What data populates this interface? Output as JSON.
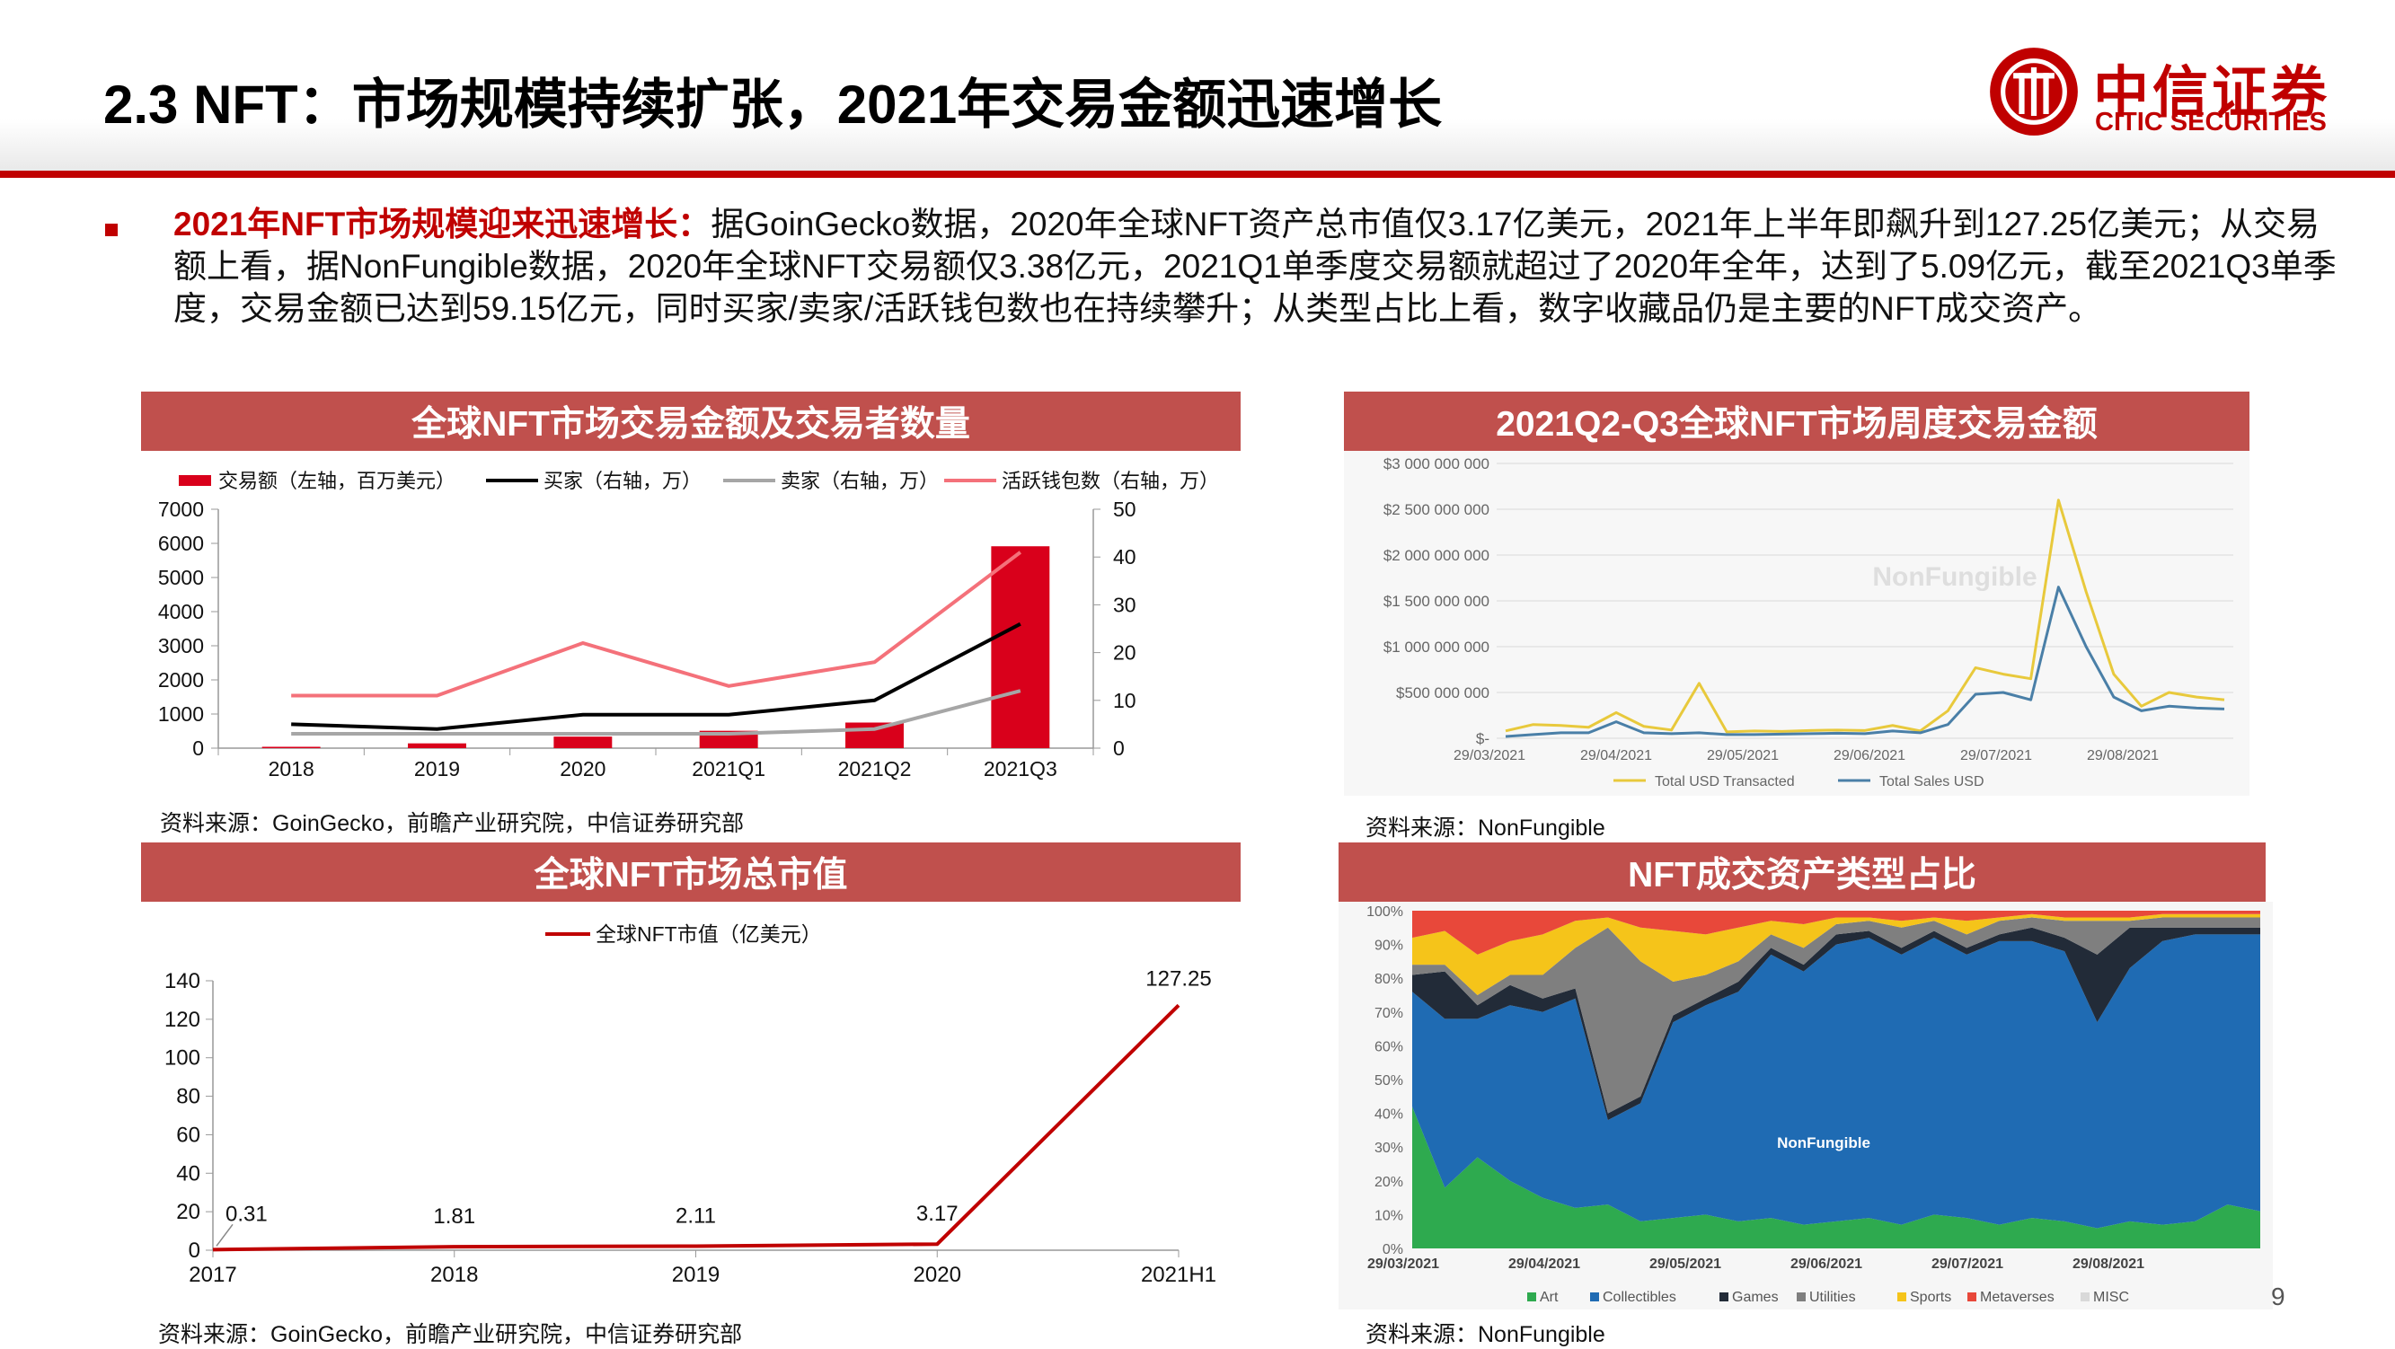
{
  "page": {
    "title": "2.3 NFT：市场规模持续扩张，2021年交易金额迅速增长",
    "logo_cn": "中信证券",
    "logo_en": "CITIC SECURITIES",
    "page_number": "9",
    "colors": {
      "brand_red": "#c00000",
      "panel_title_bg": "#c0504d"
    }
  },
  "summary": {
    "highlight": "2021年NFT市场规模迎来迅速增长：",
    "text": "据GoinGecko数据，2020年全球NFT资产总市值仅3.17亿美元，2021年上半年即飙升到127.25亿美元；从交易额上看，据NonFungible数据，2020年全球NFT交易额仅3.38亿元，2021Q1单季度交易额就超过了2020年全年，达到了5.09亿元，截至2021Q3单季度，交易金额已达到59.15亿元，同时买家/卖家/活跃钱包数也在持续攀升；从类型占比上看，数字收藏品仍是主要的NFT成交资产。"
  },
  "panels": {
    "p1": {
      "title": "全球NFT市场交易金额及交易者数量",
      "source": "资料来源：GoinGecko，前瞻产业研究院，中信证券研究部"
    },
    "p2": {
      "title": "2021Q2-Q3全球NFT市场周度交易金额",
      "source": "资料来源：NonFungible"
    },
    "p3": {
      "title": "全球NFT市场总市值",
      "source": "资料来源：GoinGecko，前瞻产业研究院，中信证券研究部"
    },
    "p4": {
      "title": "NFT成交资产类型占比",
      "source": "资料来源：NonFungible"
    }
  },
  "chart_data": [
    {
      "type": "bar",
      "categories": [
        "2018",
        "2019",
        "2020",
        "2021Q1",
        "2021Q2",
        "2021Q3"
      ],
      "ylim": [
        0,
        7000
      ],
      "yticks": [
        0,
        1000,
        2000,
        3000,
        4000,
        5000,
        6000,
        7000
      ],
      "y2lim": [
        0,
        50
      ],
      "y2ticks": [
        0,
        10,
        20,
        30,
        40,
        50
      ],
      "legend_position": "top",
      "series": [
        {
          "name": "交易额（左轴，百万美元）",
          "kind": "bar",
          "axis": "left",
          "color": "#d9001b",
          "values": [
            40,
            140,
            338,
            509,
            750,
            5915
          ]
        },
        {
          "name": "买家（右轴，万）",
          "kind": "line",
          "axis": "right",
          "color": "#000000",
          "values": [
            5,
            4,
            7,
            7,
            10,
            26
          ]
        },
        {
          "name": "卖家（右轴，万）",
          "kind": "line",
          "axis": "right",
          "color": "#a6a6a6",
          "values": [
            3,
            3,
            3,
            3,
            4,
            12
          ]
        },
        {
          "name": "活跃钱包数（右轴，万）",
          "kind": "line",
          "axis": "right",
          "color": "#f4717a",
          "values": [
            11,
            11,
            22,
            13,
            18,
            41
          ]
        }
      ]
    },
    {
      "type": "line",
      "watermark": "NonFungible",
      "ylim": [
        0,
        3000000000
      ],
      "ytick_labels": [
        "$-",
        "$500 000 000",
        "$1 000 000 000",
        "$1 500 000 000",
        "$2 000 000 000",
        "$2 500 000 000",
        "$3 000 000 000"
      ],
      "x_tick_labels": [
        "29/03/2021",
        "29/04/2021",
        "29/05/2021",
        "29/06/2021",
        "29/07/2021",
        "29/08/2021"
      ],
      "x": [
        "2021-03-29",
        "2021-04-05",
        "2021-04-12",
        "2021-04-19",
        "2021-04-26",
        "2021-05-03",
        "2021-05-10",
        "2021-05-17",
        "2021-05-24",
        "2021-05-31",
        "2021-06-07",
        "2021-06-14",
        "2021-06-21",
        "2021-06-28",
        "2021-07-05",
        "2021-07-12",
        "2021-07-19",
        "2021-07-26",
        "2021-08-02",
        "2021-08-09",
        "2021-08-16",
        "2021-08-23",
        "2021-08-30",
        "2021-09-06",
        "2021-09-13",
        "2021-09-20",
        "2021-09-27"
      ],
      "legend_position": "bottom",
      "series": [
        {
          "name": "Total USD Transacted",
          "color": "#e8c93c",
          "values": [
            80000000,
            150000000,
            140000000,
            120000000,
            280000000,
            130000000,
            90000000,
            600000000,
            70000000,
            80000000,
            75000000,
            85000000,
            90000000,
            85000000,
            140000000,
            80000000,
            300000000,
            770000000,
            700000000,
            650000000,
            2600000000,
            1600000000,
            700000000,
            350000000,
            500000000,
            450000000,
            420000000
          ]
        },
        {
          "name": "Total Sales USD",
          "color": "#4a7fa7",
          "values": [
            20000000,
            40000000,
            60000000,
            60000000,
            180000000,
            60000000,
            50000000,
            60000000,
            40000000,
            40000000,
            45000000,
            50000000,
            55000000,
            50000000,
            80000000,
            60000000,
            150000000,
            480000000,
            500000000,
            420000000,
            1650000000,
            1000000000,
            450000000,
            300000000,
            350000000,
            330000000,
            320000000
          ]
        }
      ]
    },
    {
      "type": "line",
      "categories": [
        "2017",
        "2018",
        "2019",
        "2020",
        "2021H1"
      ],
      "ylim": [
        0,
        140
      ],
      "yticks": [
        0,
        20,
        40,
        60,
        80,
        100,
        120,
        140
      ],
      "legend_position": "top",
      "series": [
        {
          "name": "全球NFT市值（亿美元）",
          "color": "#c00000",
          "values": [
            0.31,
            1.81,
            2.11,
            3.17,
            127.25
          ],
          "labels": [
            "0.31",
            "1.81",
            "2.11",
            "3.17",
            "127.25"
          ]
        }
      ]
    },
    {
      "type": "area",
      "watermark": "NonFungible",
      "ylim": [
        0,
        100
      ],
      "ytick_labels": [
        "0%",
        "10%",
        "20%",
        "30%",
        "40%",
        "50%",
        "60%",
        "70%",
        "80%",
        "90%",
        "100%"
      ],
      "x_tick_labels": [
        "29/03/2021",
        "29/04/2021",
        "29/05/2021",
        "29/06/2021",
        "29/07/2021",
        "29/08/2021"
      ],
      "legend_position": "bottom",
      "series": [
        {
          "name": "Art",
          "color": "#2eaa4f",
          "values": [
            42,
            18,
            27,
            20,
            15,
            12,
            13,
            8,
            9,
            10,
            8,
            9,
            7,
            8,
            9,
            7,
            10,
            9,
            7,
            9,
            8,
            6,
            8,
            7,
            8,
            13,
            11
          ]
        },
        {
          "name": "Collectibles",
          "color": "#1f6bb3",
          "values": [
            34,
            50,
            41,
            52,
            55,
            62,
            25,
            35,
            58,
            62,
            68,
            78,
            75,
            82,
            83,
            80,
            82,
            78,
            84,
            82,
            80,
            61,
            75,
            84,
            85,
            80,
            82
          ]
        },
        {
          "name": "Games",
          "color": "#222b38",
          "values": [
            5,
            14,
            4,
            6,
            4,
            3,
            2,
            2,
            2,
            2,
            3,
            2,
            2,
            3,
            2,
            2,
            2,
            2,
            2,
            4,
            4,
            20,
            12,
            4,
            2,
            2,
            2
          ]
        },
        {
          "name": "Utilities",
          "color": "#7f7f7f",
          "values": [
            3,
            2,
            3,
            3,
            7,
            12,
            55,
            40,
            10,
            7,
            6,
            4,
            5,
            3,
            3,
            6,
            3,
            4,
            4,
            3,
            5,
            10,
            2,
            3,
            3,
            3,
            3
          ]
        },
        {
          "name": "Sports",
          "color": "#f5c41a",
          "values": [
            8,
            10,
            12,
            10,
            12,
            8,
            3,
            10,
            15,
            12,
            10,
            4,
            7,
            2,
            1,
            2,
            1,
            4,
            1,
            1,
            1,
            1,
            1,
            1,
            1,
            1,
            1
          ]
        },
        {
          "name": "Metaverses",
          "color": "#e8483a",
          "values": [
            8,
            6,
            13,
            9,
            7,
            3,
            2,
            5,
            6,
            7,
            5,
            3,
            4,
            2,
            2,
            3,
            2,
            3,
            2,
            1,
            2,
            2,
            2,
            1,
            1,
            1,
            1
          ]
        },
        {
          "name": "MISC",
          "color": "#d9d9d9",
          "values": [
            0,
            0,
            0,
            0,
            0,
            0,
            0,
            0,
            0,
            0,
            0,
            0,
            0,
            0,
            0,
            0,
            0,
            0,
            0,
            0,
            0,
            0,
            0,
            0,
            0,
            0,
            0
          ]
        }
      ]
    }
  ]
}
